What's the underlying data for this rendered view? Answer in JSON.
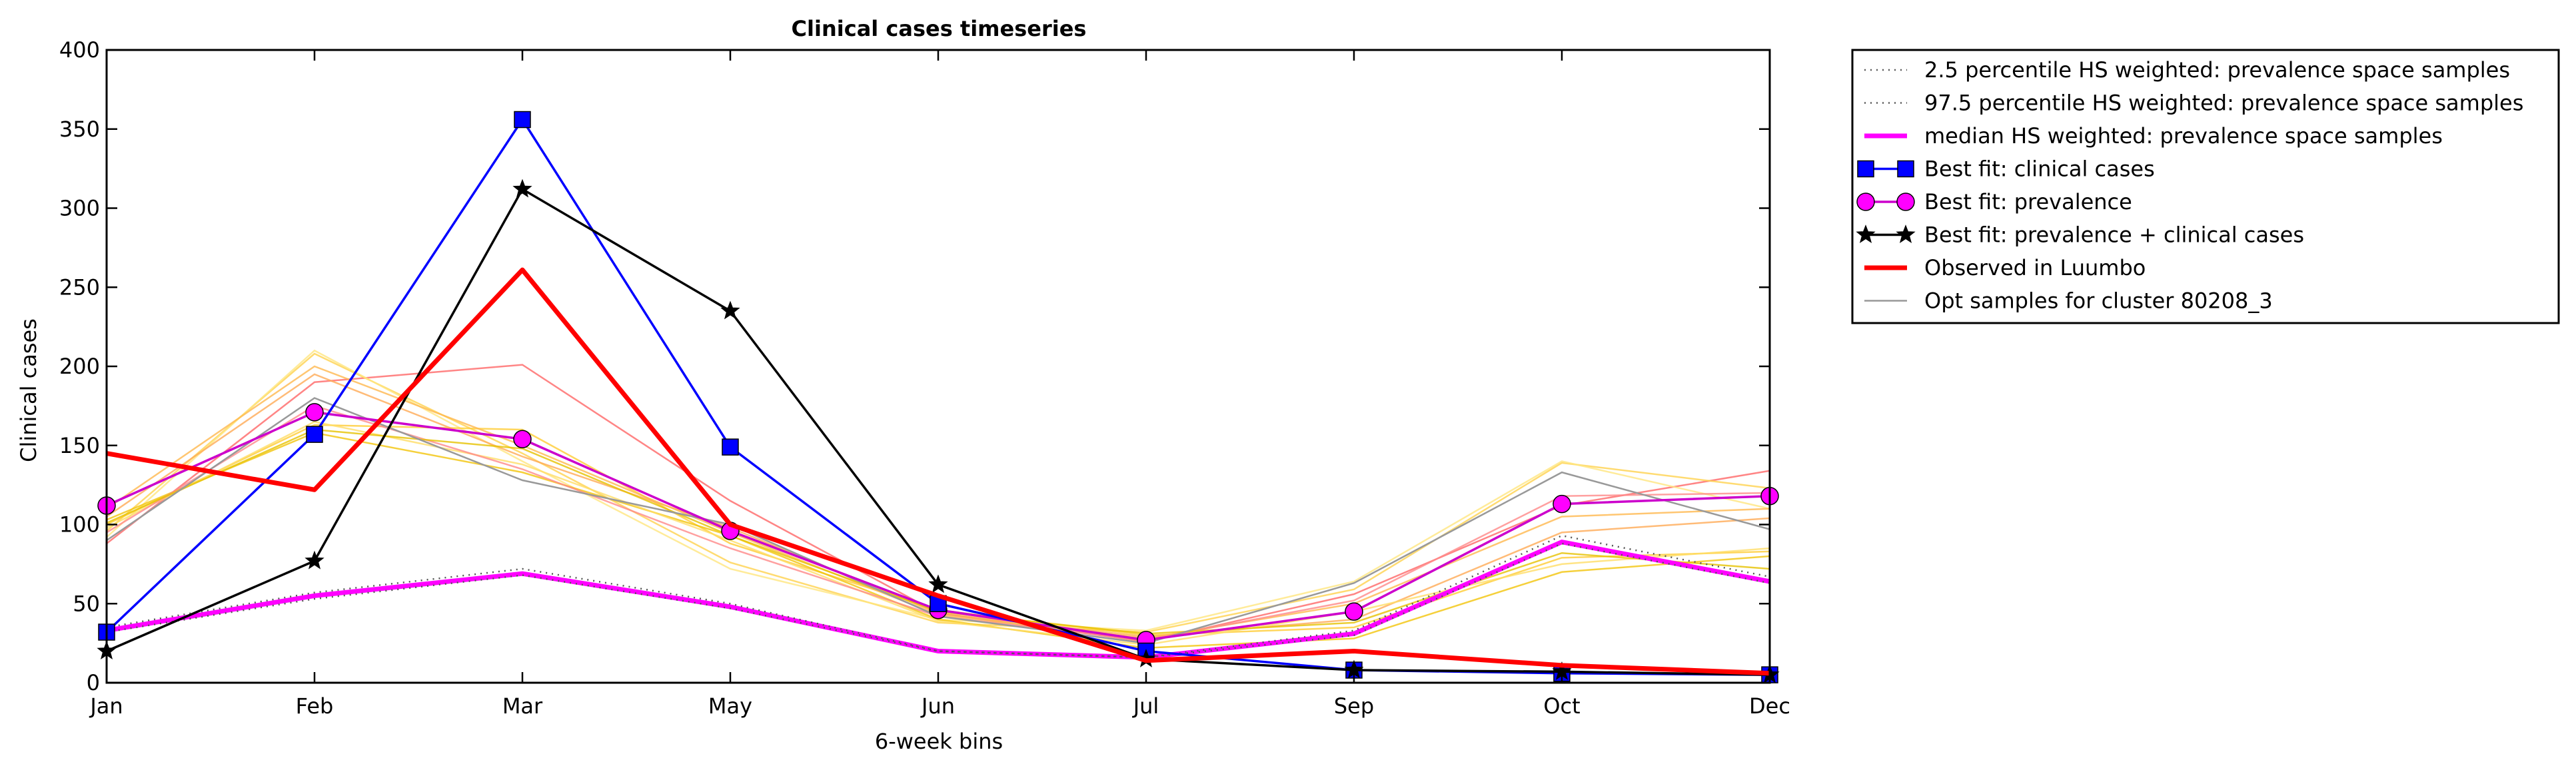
{
  "chart_data": {
    "type": "line",
    "title": "Clinical cases timeseries",
    "xlabel": "6-week bins",
    "ylabel": "Clinical cases",
    "categories": [
      "Jan",
      "Feb",
      "Mar",
      "May",
      "Jun",
      "Jul",
      "Sep",
      "Oct",
      "Dec"
    ],
    "ylim": [
      0,
      400
    ],
    "yticks": [
      "0",
      "50",
      "100",
      "150",
      "200",
      "250",
      "300",
      "350",
      "400"
    ],
    "grid": false,
    "legend_position": "outside-right",
    "series": [
      {
        "name": "2.5 percentile HS weighted: prevalence space samples",
        "values": [
          32,
          53,
          68,
          47,
          20,
          16,
          30,
          88,
          63
        ],
        "color": "#555555",
        "style": "dotted"
      },
      {
        "name": "97.5 percentile HS weighted: prevalence space samples",
        "values": [
          35,
          57,
          72,
          50,
          20,
          16,
          33,
          93,
          67
        ],
        "color": "#555555",
        "style": "dotted"
      },
      {
        "name": "median HS weighted: prevalence space samples",
        "values": [
          33,
          55,
          69,
          48,
          20,
          16,
          31,
          89,
          64
        ],
        "color": "#ff00ff",
        "style": "solid"
      },
      {
        "name": "Best fit: clinical cases",
        "values": [
          32,
          157,
          356,
          149,
          50,
          20,
          8,
          6,
          5
        ],
        "color": "#0000ff",
        "marker": "square"
      },
      {
        "name": "Best fit: prevalence",
        "values": [
          112,
          171,
          154,
          96,
          46,
          27,
          45,
          113,
          118
        ],
        "color": "#cc00cc",
        "marker": "circle"
      },
      {
        "name": "Best fit: prevalence + clinical cases",
        "values": [
          20,
          77,
          312,
          235,
          62,
          15,
          8,
          7,
          5
        ],
        "color": "#000000",
        "marker": "star"
      },
      {
        "name": "Observed in Luumbo",
        "values": [
          145,
          122,
          261,
          100,
          55,
          14,
          20,
          11,
          6
        ],
        "color": "#ff0000",
        "style": "thick"
      },
      {
        "name": "Opt samples for cluster 80208_3",
        "values": [
          90,
          180,
          128,
          100,
          42,
          25,
          63,
          133,
          97
        ],
        "color": "#999999",
        "style": "thin"
      }
    ],
    "opt_samples": [
      {
        "color": "#ff6666",
        "values": [
          88,
          190,
          201,
          115,
          44,
          26,
          56,
          112,
          134
        ]
      },
      {
        "color": "#ffd24d",
        "values": [
          96,
          208,
          145,
          76,
          38,
          32,
          59,
          139,
          123
        ]
      },
      {
        "color": "#ffe680",
        "values": [
          92,
          210,
          140,
          72,
          40,
          33,
          64,
          140,
          110
        ]
      },
      {
        "color": "#ffcc33",
        "values": [
          100,
          163,
          160,
          88,
          46,
          30,
          35,
          79,
          83
        ]
      },
      {
        "color": "#ffaa55",
        "values": [
          105,
          195,
          143,
          98,
          44,
          29,
          40,
          95,
          104
        ]
      },
      {
        "color": "#f2c40a",
        "values": [
          103,
          158,
          133,
          93,
          40,
          22,
          28,
          70,
          80
        ]
      },
      {
        "color": "#ffb84d",
        "values": [
          110,
          200,
          150,
          95,
          43,
          28,
          50,
          105,
          110
        ]
      },
      {
        "color": "#ffdd66",
        "values": [
          98,
          165,
          138,
          90,
          39,
          24,
          45,
          75,
          85
        ]
      },
      {
        "color": "#ff8888",
        "values": [
          95,
          175,
          135,
          85,
          42,
          27,
          52,
          118,
          120
        ]
      },
      {
        "color": "#e6c200",
        "values": [
          101,
          160,
          148,
          93,
          45,
          31,
          38,
          82,
          72
        ]
      }
    ]
  }
}
